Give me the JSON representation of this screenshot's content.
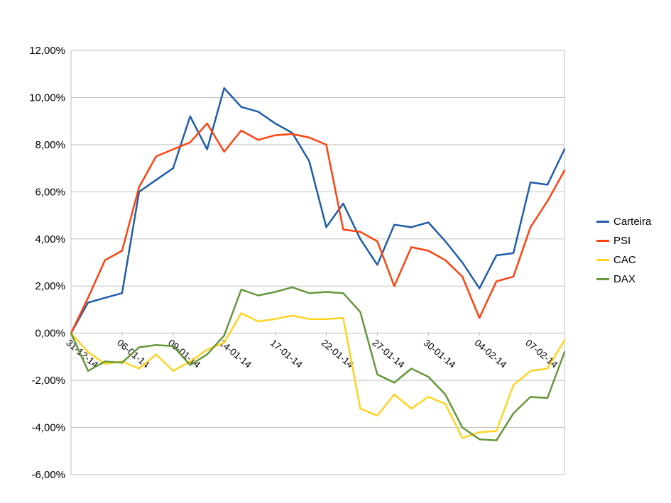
{
  "chart_data": {
    "type": "line",
    "title": "",
    "xlabel": "",
    "ylabel": "",
    "grid": true,
    "legend_position": "right",
    "x_axis_crosses_at": 0,
    "ylim": [
      -6,
      12
    ],
    "y_step": 2,
    "n_points": 30,
    "tick_every": 3,
    "y_ticks": [
      "12,00%",
      "10,00%",
      "8,00%",
      "6,00%",
      "4,00%",
      "2,00%",
      "0,00%",
      "-2,00%",
      "-4,00%",
      "-6,00%"
    ],
    "x_tick_labels": [
      "31-12-14",
      "06-01-14",
      "09-01-14",
      "14-01-14",
      "17-01-14",
      "22-01-14",
      "27-01-14",
      "30-01-14",
      "04-02-14",
      "07-02-14"
    ],
    "grid_color": "#C0C0C0",
    "text_color": "#000000",
    "series": [
      {
        "name": "Carteira",
        "color": "#1F5CA9",
        "values": [
          0.0,
          1.3,
          1.5,
          1.7,
          6.0,
          6.5,
          7.0,
          9.2,
          7.8,
          10.4,
          9.6,
          9.4,
          8.9,
          8.5,
          7.3,
          4.5,
          5.5,
          4.0,
          2.9,
          4.6,
          4.5,
          4.7,
          3.9,
          3.0,
          1.9,
          3.3,
          3.4,
          6.4,
          6.3,
          7.8
        ]
      },
      {
        "name": "PSI",
        "color": "#FF420E",
        "values": [
          0.0,
          1.5,
          3.1,
          3.5,
          6.2,
          7.5,
          7.8,
          8.1,
          8.9,
          7.7,
          8.6,
          8.2,
          8.4,
          8.45,
          8.3,
          8.0,
          4.4,
          4.3,
          3.9,
          2.0,
          3.65,
          3.5,
          3.1,
          2.4,
          0.65,
          2.2,
          2.4,
          4.5,
          5.6,
          6.9
        ]
      },
      {
        "name": "CAC",
        "color": "#FFD320",
        "values": [
          0.0,
          -0.8,
          -1.3,
          -1.2,
          -1.5,
          -0.9,
          -1.6,
          -1.2,
          -0.7,
          -0.4,
          0.85,
          0.5,
          0.6,
          0.75,
          0.6,
          0.6,
          0.65,
          -3.2,
          -3.5,
          -2.6,
          -3.2,
          -2.7,
          -3.0,
          -4.45,
          -4.2,
          -4.15,
          -2.2,
          -1.6,
          -1.5,
          -0.3
        ]
      },
      {
        "name": "DAX",
        "color": "#66973B",
        "values": [
          0.0,
          -1.6,
          -1.2,
          -1.25,
          -0.6,
          -0.5,
          -0.55,
          -1.35,
          -0.9,
          -0.1,
          1.85,
          1.6,
          1.75,
          1.95,
          1.7,
          1.75,
          1.7,
          0.9,
          -1.75,
          -2.1,
          -1.5,
          -1.85,
          -2.6,
          -4.0,
          -4.5,
          -4.55,
          -3.4,
          -2.7,
          -2.75,
          -0.8
        ]
      }
    ]
  }
}
